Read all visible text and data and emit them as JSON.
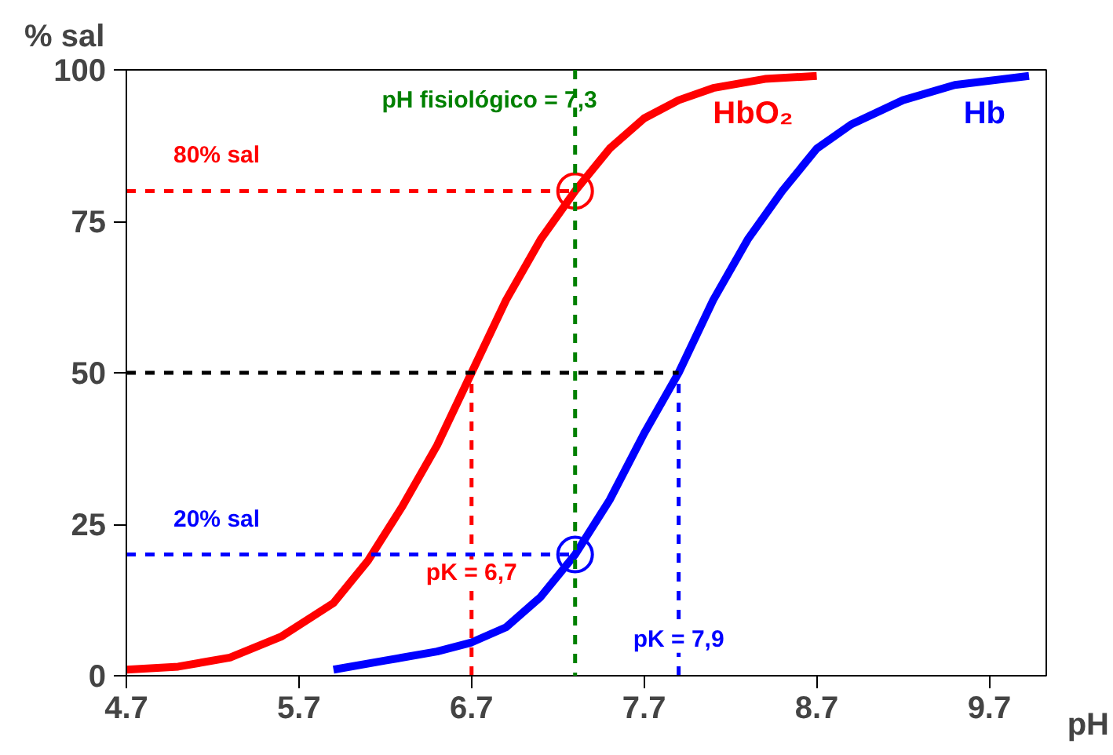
{
  "chart_data": {
    "type": "line",
    "xlabel": "pH",
    "ylabel": "% sal",
    "xlim": [
      4.7,
      10.03
    ],
    "ylim": [
      0,
      100
    ],
    "xticks": [
      {
        "value": 4.7,
        "label": "4.7"
      },
      {
        "value": 5.7,
        "label": "5.7"
      },
      {
        "value": 6.7,
        "label": "6.7"
      },
      {
        "value": 7.7,
        "label": "7.7"
      },
      {
        "value": 8.7,
        "label": "8.7"
      },
      {
        "value": 9.7,
        "label": "9.7"
      }
    ],
    "yticks": [
      0,
      25,
      50,
      75,
      100
    ],
    "grid": false,
    "series": [
      {
        "name": "HbO₂",
        "color": "#ff0000",
        "line_style": "solid",
        "x": [
          4.7,
          5.0,
          5.3,
          5.6,
          5.9,
          6.1,
          6.3,
          6.5,
          6.7,
          6.9,
          7.1,
          7.3,
          7.5,
          7.7,
          7.9,
          8.1,
          8.4,
          8.7
        ],
        "values": [
          1,
          1.5,
          3,
          6.5,
          12,
          19,
          28,
          38,
          50,
          62,
          72,
          80,
          87,
          92,
          95,
          97,
          98.5,
          99
        ]
      },
      {
        "name": "Hb",
        "color": "#0000ff",
        "line_style": "solid",
        "x": [
          5.9,
          6.2,
          6.5,
          6.7,
          6.9,
          7.1,
          7.3,
          7.5,
          7.7,
          7.9,
          8.1,
          8.3,
          8.5,
          8.7,
          8.9,
          9.2,
          9.5,
          9.93
        ],
        "values": [
          1,
          2.5,
          4,
          5.5,
          8,
          13,
          20,
          29,
          40,
          50,
          62,
          72,
          80,
          87,
          91,
          95,
          97.5,
          99
        ]
      },
      {
        "color": "#ff0000",
        "line_style": "dashed",
        "x": [
          4.7,
          7.3
        ],
        "values": [
          80,
          80
        ]
      },
      {
        "color": "#ff0000",
        "line_style": "dashed",
        "x": [
          6.7,
          6.7
        ],
        "values": [
          0,
          50
        ]
      },
      {
        "color": "#0000ff",
        "line_style": "dashed",
        "x": [
          4.7,
          7.3
        ],
        "values": [
          20,
          20
        ]
      },
      {
        "color": "#0000ff",
        "line_style": "dashed",
        "x": [
          7.9,
          7.9
        ],
        "values": [
          0,
          50
        ]
      },
      {
        "color": "#000000",
        "line_style": "dashed",
        "x": [
          4.7,
          7.9
        ],
        "values": [
          50,
          50
        ]
      },
      {
        "type": "scatter",
        "marker": "circle",
        "color": "#ff0000",
        "x": [
          7.3
        ],
        "values": [
          80
        ]
      },
      {
        "type": "scatter",
        "marker": "circle",
        "color": "#0000ff",
        "x": [
          7.3
        ],
        "values": [
          20
        ]
      }
    ],
    "ref_lines": [
      {
        "axis": "x",
        "value": 7.3,
        "label": "pH fisiológico = 7,3",
        "color": "#008000",
        "line_style": "dashed"
      }
    ],
    "annotations": [
      "80% sal",
      "20% sal",
      {
        "text": "pK = 6,7",
        "x": 6.7,
        "y": 17
      },
      {
        "text": "pK = 7,9",
        "x": 7.9,
        "y": 6
      }
    ]
  }
}
